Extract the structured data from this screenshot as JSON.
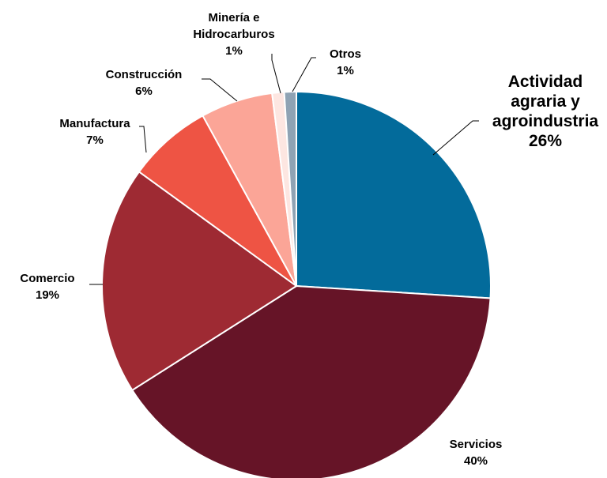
{
  "chart_data": {
    "type": "pie",
    "title": "",
    "slices": [
      {
        "label_lines": [
          "Actividad",
          "agraria y",
          "agroindustria"
        ],
        "pct_label": "26%",
        "value": 26,
        "color": "#036B9B"
      },
      {
        "label_lines": [
          "Servicios"
        ],
        "pct_label": "40%",
        "value": 40,
        "color": "#661427"
      },
      {
        "label_lines": [
          "Comercio"
        ],
        "pct_label": "19%",
        "value": 19,
        "color": "#9E2A33"
      },
      {
        "label_lines": [
          "Manufactura"
        ],
        "pct_label": "7%",
        "value": 7,
        "color": "#EE5444"
      },
      {
        "label_lines": [
          "Construcción"
        ],
        "pct_label": "6%",
        "value": 6,
        "color": "#FBA597"
      },
      {
        "label_lines": [
          "Minería e",
          "Hidrocarburos"
        ],
        "pct_label": "1%",
        "value": 1,
        "color": "#FDE6E1"
      },
      {
        "label_lines": [
          "Otros"
        ],
        "pct_label": "1%",
        "value": 1,
        "color": "#8FA3B4"
      }
    ],
    "start_angle_deg": 0,
    "direction": "clockwise",
    "legend": "none"
  }
}
